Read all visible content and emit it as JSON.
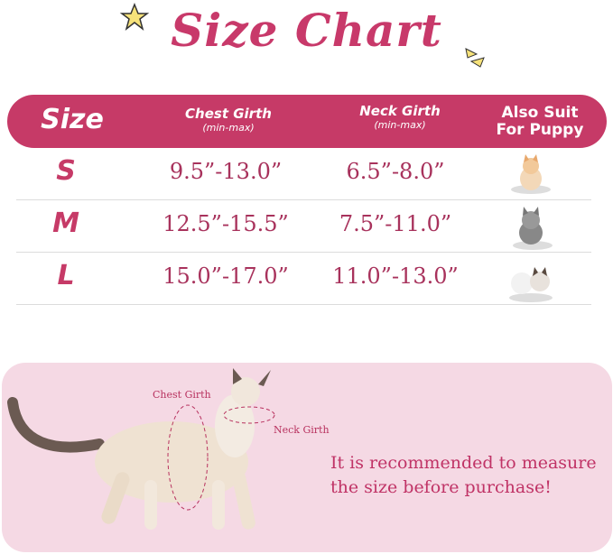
{
  "title": "Size Chart",
  "header": {
    "size": "Size",
    "chest": "Chest Girth",
    "chest_sub": "(min-max)",
    "neck": "Neck Girth",
    "neck_sub": "(min-max)",
    "suit_line1": "Also Suit",
    "suit_line2": "For Puppy"
  },
  "rows": [
    {
      "size": "S",
      "chest": "9.5”-13.0”",
      "neck": "6.5”-8.0”",
      "pet": "orange-white-kitten"
    },
    {
      "size": "M",
      "chest": "12.5”-15.5”",
      "neck": "7.5”-11.0”",
      "pet": "grey-kitten"
    },
    {
      "size": "L",
      "chest": "15.0”-17.0”",
      "neck": "11.0”-13.0”",
      "pet": "white-puppy-and-ragdoll-cat"
    }
  ],
  "diagram": {
    "chest_label": "Chest Girth",
    "neck_label": "Neck Girth",
    "note_line1": "It is recommended to measure",
    "note_line2": "the size before purchase!"
  },
  "colors": {
    "primary": "#c63a67",
    "panel": "#f5d9e4"
  }
}
